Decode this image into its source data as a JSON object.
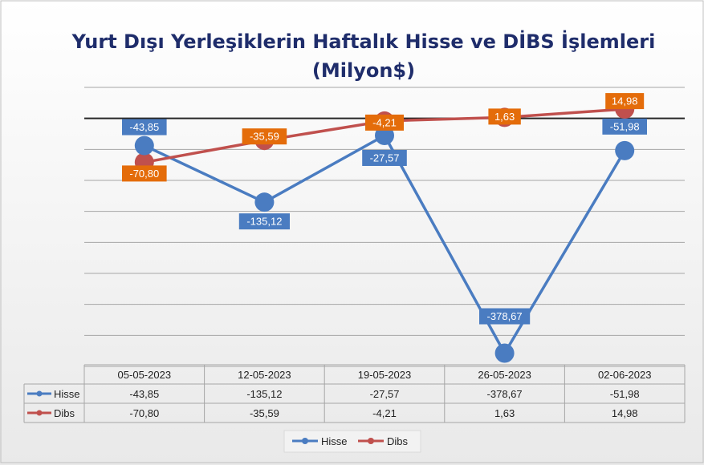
{
  "chart_data": {
    "type": "line",
    "title": "Yurt Dışı Yerleşiklerin Haftalık Hisse ve DİBS İşlemleri",
    "subtitle": "(Milyon$)",
    "categories": [
      "05-05-2023",
      "12-05-2023",
      "19-05-2023",
      "26-05-2023",
      "02-06-2023"
    ],
    "series": [
      {
        "name": "Hisse",
        "color": "#4a7cc1",
        "label_color": "#4a7cc1",
        "values": [
          -43.85,
          -135.12,
          -27.57,
          -378.67,
          -51.98
        ],
        "labels": [
          "-43,85",
          "-135,12",
          "-27,57",
          "-378,67",
          "-51,98"
        ]
      },
      {
        "name": "Dibs",
        "color": "#c0504d",
        "label_color": "#e46c0a",
        "values": [
          -70.8,
          -35.59,
          -4.21,
          1.63,
          14.98
        ],
        "labels": [
          "-70,80",
          "-35,59",
          "-4,21",
          "1,63",
          "14,98"
        ]
      }
    ],
    "ylim": [
      -400,
      50
    ],
    "grid": true,
    "legend": "bottom",
    "data_table": true
  }
}
